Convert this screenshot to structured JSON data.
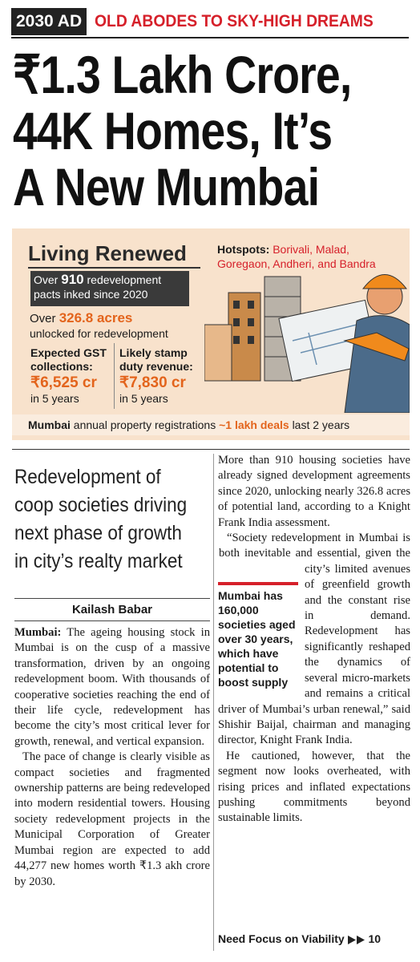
{
  "header": {
    "tag": "2030 AD",
    "kicker": "OLD ABODES TO SKY-HIGH DREAMS"
  },
  "headline": [
    "₹1.3 Lakh Crore,",
    "44K Homes, It’s",
    "A New Mumbai"
  ],
  "infographic": {
    "title": "Living Renewed",
    "hotspots_label": "Hotspots:",
    "hotspots": "Borivali, Malad, Goregaon, Andheri, and Bandra",
    "pacts": {
      "prefix": "Over",
      "value": "910",
      "text": "redevelopment pacts inked since 2020"
    },
    "acres": {
      "prefix": "Over",
      "value": "326.8 acres",
      "text": "unlocked for redevelopment"
    },
    "gst": {
      "label": "Expected GST collections:",
      "value": "₹6,525 cr",
      "period": "in 5 years"
    },
    "stamp": {
      "label": "Likely stamp duty revenue:",
      "value": "₹7,830 cr",
      "period": "in 5 years"
    },
    "registrations": {
      "city": "Mumbai",
      "text": "annual property registrations",
      "value": "~1 lakh deals",
      "period": "last 2 years"
    }
  },
  "deck": "Redevelopment of coop societies driving next phase of growth in city’s realty market",
  "byline": "Kailash Babar",
  "body": {
    "left": [
      {
        "lead": "Mumbai:",
        "text": "The ageing housing stock in Mumbai is on the cusp of a massive transformation, driven by an ongoing redevelopment boom. With thousands of cooperative societies reaching the end of their life cycle, redevelopment has become the city’s most critical lever for growth, renewal, and vertical expansion."
      },
      "The pace of change is clearly visible as compact societies and fragmented ownership patterns are being redeveloped into modern residential towers. Housing society redevelopment projects in the Municipal Corporation of Greater Mumbai region are expected to add 44,277 new homes worth ₹1.3 akh crore by 2030."
    ],
    "right": [
      "More than 910 housing societies have already signed development agreements since 2020, unlocking nearly 326.8 acres of potential land, according to a Knight Frank India assessment.",
      "“Society redevelopment in Mumbai is both inevitable and essential, given the city’s limited avenues of greenfield growth and the constant rise in demand. Redevelopment has significantly reshaped the dynamics of several micro-markets and remains a critical driver of Mumbai’s urban renewal,” said Shishir Baijal, chairman and managing director, Knight Frank India.",
      "He cautioned, however, that the segment now looks overheated, with rising prices and inflated expectations pushing commitments beyond sustainable limits."
    ],
    "pullquote": "Mumbai has 160,000 societies aged over 30 years, which have potential to boost supply"
  },
  "jump": {
    "text": "Need Focus on Viability",
    "page": "10"
  }
}
